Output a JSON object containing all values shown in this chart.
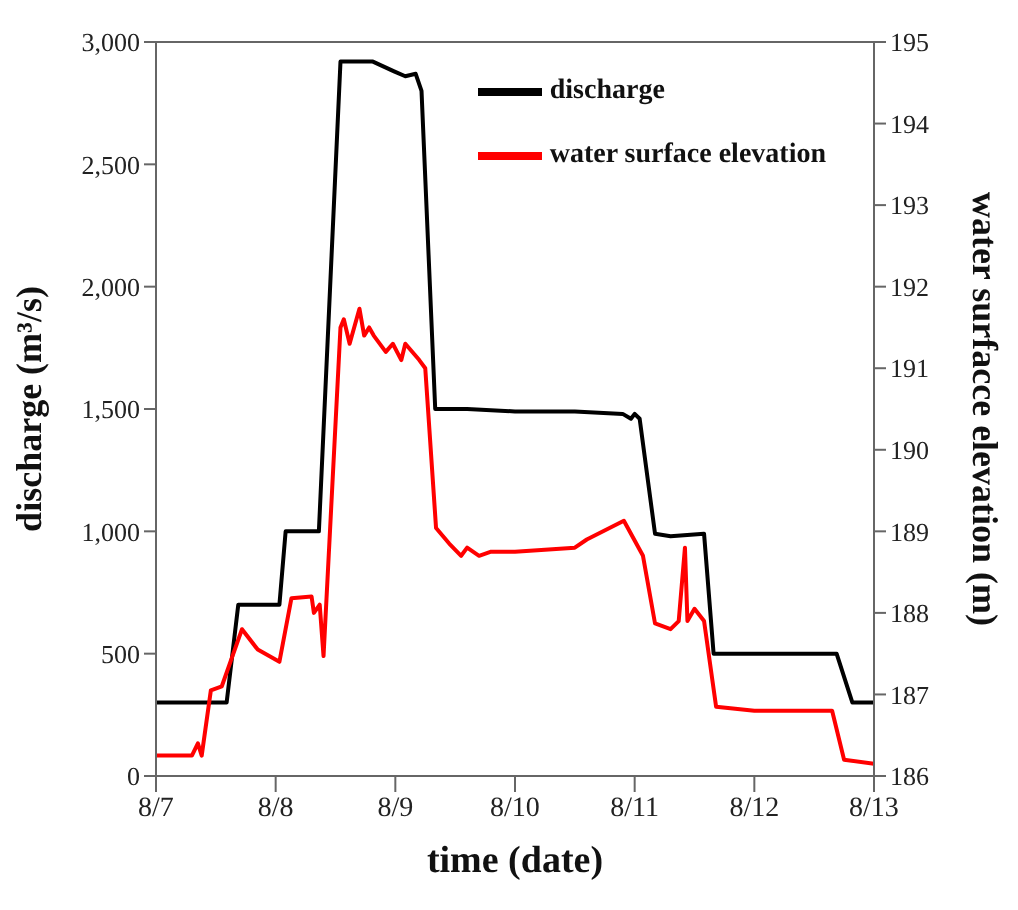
{
  "chart_data": {
    "type": "line",
    "xlabel": "time (date)",
    "ylabel": "discharge (m³/s)",
    "y2label": "water surfacce elevation (m)",
    "xlim": [
      "--08-07",
      "--08-13"
    ],
    "xticks": [
      {
        "value": "--08-07",
        "label": "8/7"
      },
      {
        "value": "--08-08",
        "label": "8/8"
      },
      {
        "value": "--08-09",
        "label": "8/9"
      },
      {
        "value": "--08-10",
        "label": "8/10"
      },
      {
        "value": "--08-11",
        "label": "8/11"
      },
      {
        "value": "--08-12",
        "label": "8/12"
      },
      {
        "value": "--08-13",
        "label": "8/13"
      }
    ],
    "ylim": [
      0,
      3000
    ],
    "yticks": [
      {
        "value": 0,
        "label": "0"
      },
      {
        "value": 500,
        "label": "500"
      },
      {
        "value": 1000,
        "label": "1,000"
      },
      {
        "value": 1500,
        "label": "1,500"
      },
      {
        "value": 2000,
        "label": "2,000"
      },
      {
        "value": 2500,
        "label": "2,500"
      },
      {
        "value": 3000,
        "label": "3,000"
      }
    ],
    "y2lim": [
      186,
      195
    ],
    "y2ticks": [
      186,
      187,
      188,
      189,
      190,
      191,
      192,
      193,
      194,
      195
    ],
    "grid": false,
    "legend": "top right",
    "marker": "none",
    "line_style": "solid",
    "series": [
      {
        "name": "discharge",
        "color": "#000000",
        "x": [
          "--08-07T00:00",
          "--08-07T14:10",
          "--08-07T16:30",
          "--08-08T00:45",
          "--08-08T02:00",
          "--08-08T08:40",
          "--08-08T13:00",
          "--08-08T19:30",
          "--08-08T23:45",
          "--08-09T02:00",
          "--08-09T04:05",
          "--08-09T05:15",
          "--08-09T08:00",
          "--08-09T14:24",
          "--08-10T00:00",
          "--08-10T12:00",
          "--08-10T21:36",
          "--08-10T23:15",
          "--08-11T00:00",
          "--08-11T01:00",
          "--08-11T04:05",
          "--08-11T07:12",
          "--08-11T13:55",
          "--08-11T15:50",
          "--08-12T00:00",
          "--08-12T16:30",
          "--08-12T19:40",
          "--08-13T00:00"
        ],
        "values": [
          300,
          300,
          700,
          700,
          1000,
          1000,
          2920,
          2920,
          2880,
          2860,
          2870,
          2800,
          1500,
          1500,
          1490,
          1490,
          1480,
          1460,
          1480,
          1460,
          990,
          980,
          990,
          500,
          500,
          500,
          300,
          300
        ]
      },
      {
        "name": "water surface elevation",
        "color": "#ff0000",
        "axis": "y2",
        "x": [
          "--08-07T00:00",
          "--08-07T07:12",
          "--08-07T08:24",
          "--08-07T09:10",
          "--08-07T11:00",
          "--08-07T13:12",
          "--08-07T17:15",
          "--08-07T20:24",
          "--08-08T00:45",
          "--08-08T03:10",
          "--08-08T07:12",
          "--08-08T07:40",
          "--08-08T08:50",
          "--08-08T09:36",
          "--08-08T13:00",
          "--08-08T13:40",
          "--08-08T14:50",
          "--08-08T16:48",
          "--08-08T17:45",
          "--08-08T18:45",
          "--08-08T19:40",
          "--08-08T22:05",
          "--08-08T23:30",
          "--08-09T01:12",
          "--08-09T02:00",
          "--08-09T04:48",
          "--08-09T06:00",
          "--08-09T08:10",
          "--08-09T10:48",
          "--08-09T13:12",
          "--08-09T14:24",
          "--08-09T16:48",
          "--08-09T19:12",
          "--08-10T00:00",
          "--08-10T12:00",
          "--08-10T14:24",
          "--08-10T21:50",
          "--08-11T01:40",
          "--08-11T04:05",
          "--08-11T07:12",
          "--08-11T08:50",
          "--08-11T10:05",
          "--08-11T10:35",
          "--08-11T12:00",
          "--08-11T13:55",
          "--08-11T16:20",
          "--08-12T00:00",
          "--08-12T15:36",
          "--08-12T18:00",
          "--08-13T00:00"
        ],
        "values": [
          186.25,
          186.25,
          186.4,
          186.25,
          187.05,
          187.1,
          187.8,
          187.55,
          187.4,
          188.18,
          188.2,
          188.0,
          188.1,
          187.47,
          191.5,
          191.6,
          191.3,
          191.73,
          191.4,
          191.5,
          191.4,
          191.2,
          191.3,
          191.1,
          191.3,
          191.1,
          191.0,
          189.04,
          188.85,
          188.7,
          188.8,
          188.7,
          188.75,
          188.75,
          188.8,
          188.9,
          189.13,
          188.7,
          187.87,
          187.8,
          187.9,
          188.8,
          187.9,
          188.05,
          187.9,
          186.85,
          186.8,
          186.8,
          186.2,
          186.15
        ]
      }
    ]
  }
}
